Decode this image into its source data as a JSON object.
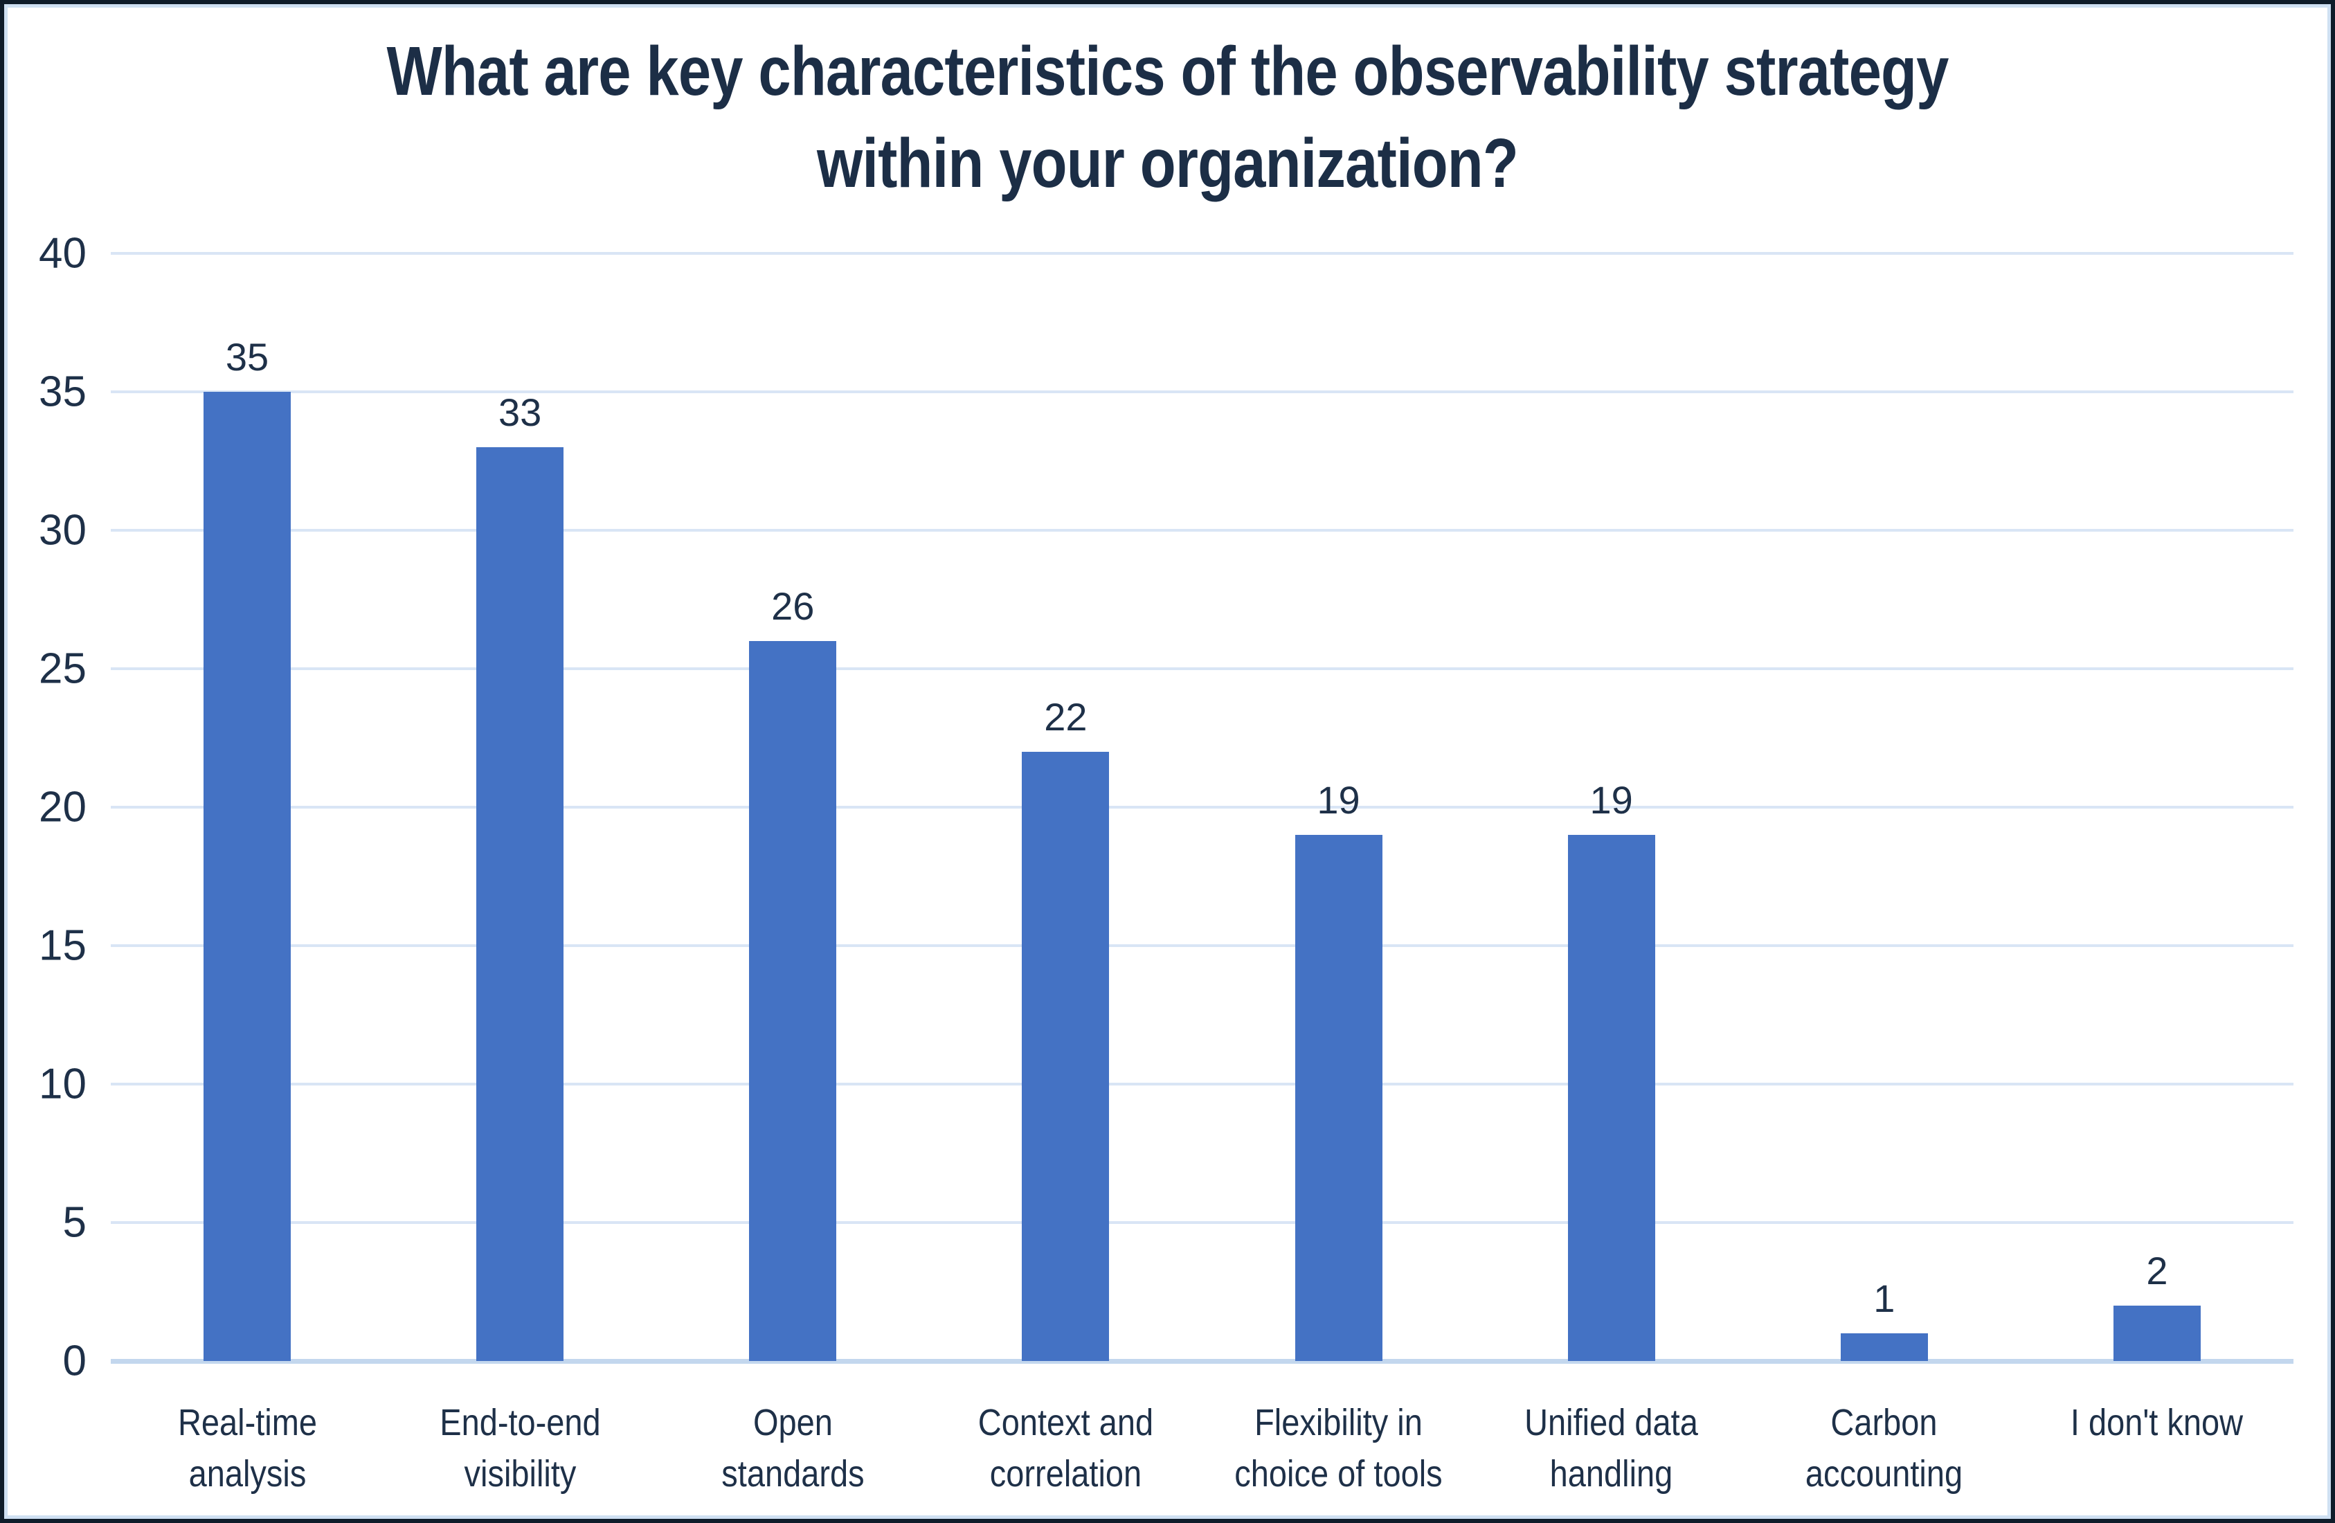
{
  "chart_data": {
    "type": "bar",
    "title": "What are key characteristics of the observability strategy within your organization?",
    "title_display": "What are key characteristics of the observability strategy\nwithin your organization?",
    "categories": [
      "Real-time analysis",
      "End-to-end visibility",
      "Open standards",
      "Context and correlation",
      "Flexibility in choice of tools",
      "Unified data handling",
      "Carbon accounting",
      "I don't know"
    ],
    "categories_display": [
      "Real-time\nanalysis",
      "End-to-end\nvisibility",
      "Open\nstandards",
      "Context and\ncorrelation",
      "Flexibility in\nchoice of tools",
      "Unified data\nhandling",
      "Carbon\naccounting",
      "I don't know"
    ],
    "values": [
      35,
      33,
      26,
      22,
      19,
      19,
      1,
      2
    ],
    "xlabel": "",
    "ylabel": "",
    "ylim": [
      0,
      40
    ],
    "ytick_step": 5,
    "yticks": [
      0,
      5,
      10,
      15,
      20,
      25,
      30,
      35,
      40
    ],
    "ytick_labels_top_to_bottom": [
      "40",
      "35",
      "30",
      "25",
      "20",
      "15",
      "10",
      "5",
      "0"
    ],
    "grid": "horizontal gridlines on",
    "legend": "none",
    "data_labels": "shown above each bar",
    "colors": {
      "bar": "#4472C4",
      "text": "#1E3048",
      "title_text": "#1C2E46",
      "gridline": "#D9E5F5",
      "axis_line": "#C3D7EE",
      "background": "#FFFFFF",
      "outer_border": "#0F1C2A",
      "inner_border": "#CFE0F2"
    }
  }
}
